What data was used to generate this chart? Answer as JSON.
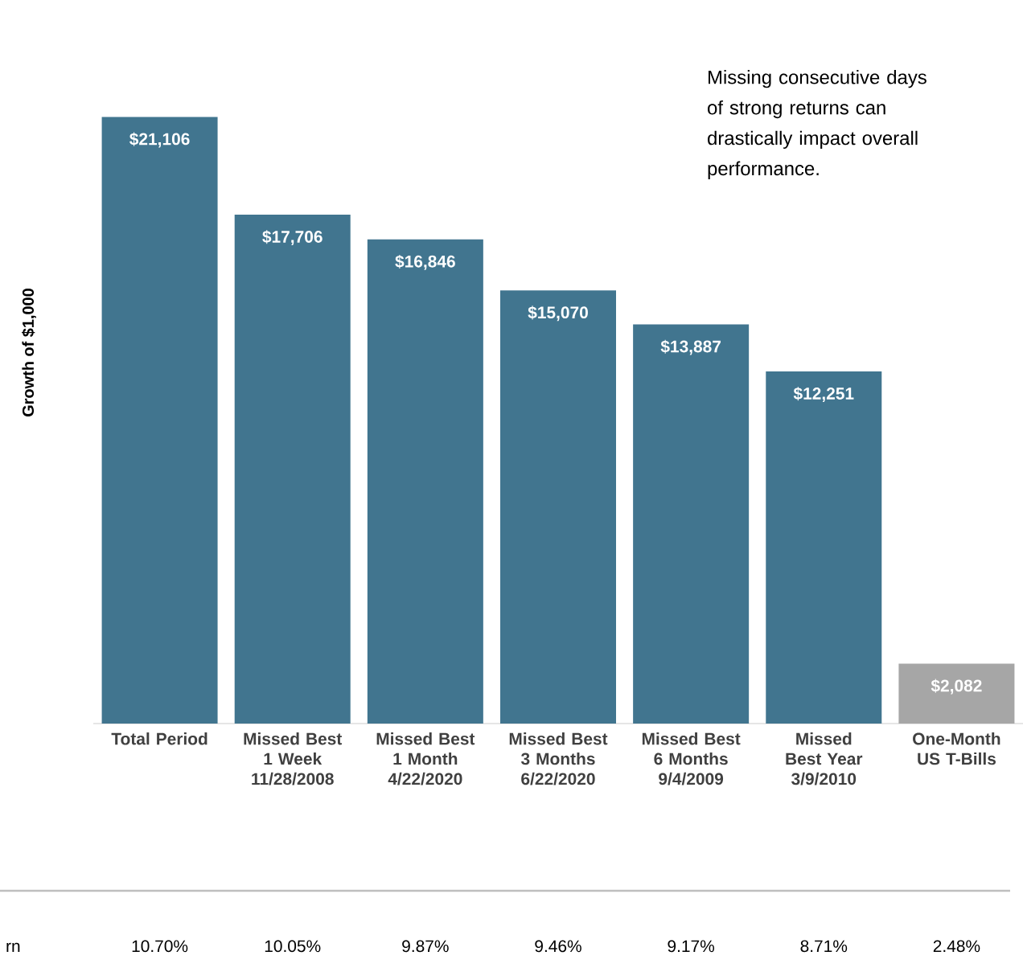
{
  "chart_data": {
    "type": "bar",
    "categories": [
      "Total Period",
      "Missed Best 1 Week 11/28/2008",
      "Missed Best 1 Month 4/22/2020",
      "Missed Best 3 Months 6/22/2020",
      "Missed Best 6 Months 9/4/2009",
      "Missed Best Year 3/9/2010",
      "One-Month US T-Bills"
    ],
    "values": [
      21106,
      17706,
      16846,
      15070,
      13887,
      12251,
      2082
    ],
    "value_labels": [
      "$21,106",
      "$17,706",
      "$16,846",
      "$15,070",
      "$13,887",
      "$12,251",
      "$2,082"
    ],
    "colors": [
      "#41758f",
      "#41758f",
      "#41758f",
      "#41758f",
      "#41758f",
      "#41758f",
      "#a6a6a6"
    ],
    "ylabel": "Growth of $1,000",
    "annotations": [
      "Missing consecutive days of strong returns can drastically impact overall performance.",
      "rn",
      "10.70%",
      "10.05%",
      "9.87%",
      "9.46%",
      "9.17%",
      "8.71%",
      "2.48%"
    ]
  }
}
